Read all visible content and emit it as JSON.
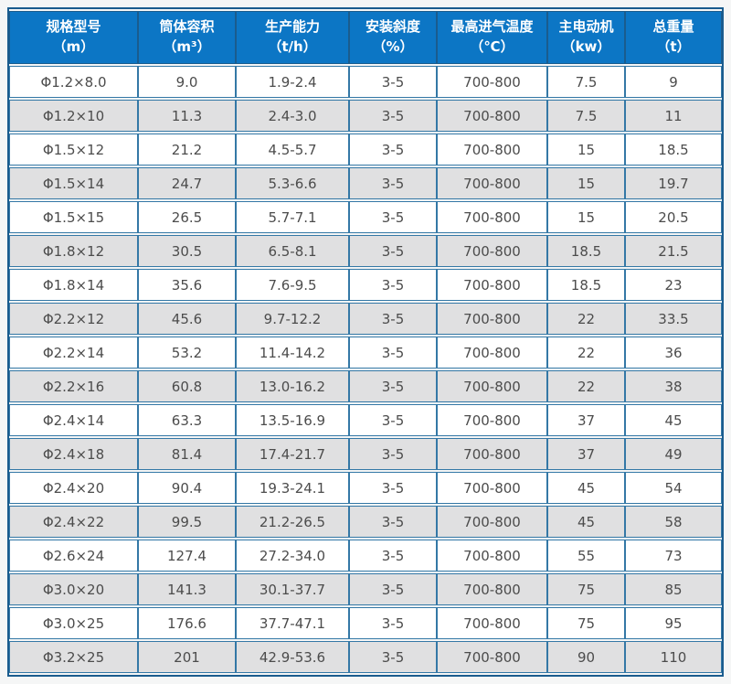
{
  "colors": {
    "header_bg": "#0c76c5",
    "header_text": "#ffffff",
    "outer_border": "#1a5c8e",
    "cell_border": "#3478a6",
    "row_bg": "#ffffff",
    "row_alt_bg": "#e0e0e1",
    "cell_text": "#4c4c4c",
    "page_bg": "#f5f6f6"
  },
  "chart_data": {
    "type": "table",
    "title": "",
    "columns": [
      {
        "label": "规格型号",
        "unit": "（m）"
      },
      {
        "label": "筒体容积",
        "unit": "（m³）"
      },
      {
        "label": "生产能力",
        "unit": "（t/h）"
      },
      {
        "label": "安装斜度",
        "unit": "（%）"
      },
      {
        "label": "最高进气温度",
        "unit": "（℃）"
      },
      {
        "label": "主电动机",
        "unit": "（kw）"
      },
      {
        "label": "总重量",
        "unit": "（t）"
      }
    ],
    "rows": [
      [
        "Φ1.2×8.0",
        "9.0",
        "1.9-2.4",
        "3-5",
        "700-800",
        "7.5",
        "9"
      ],
      [
        "Φ1.2×10",
        "11.3",
        "2.4-3.0",
        "3-5",
        "700-800",
        "7.5",
        "11"
      ],
      [
        "Φ1.5×12",
        "21.2",
        "4.5-5.7",
        "3-5",
        "700-800",
        "15",
        "18.5"
      ],
      [
        "Φ1.5×14",
        "24.7",
        "5.3-6.6",
        "3-5",
        "700-800",
        "15",
        "19.7"
      ],
      [
        "Φ1.5×15",
        "26.5",
        "5.7-7.1",
        "3-5",
        "700-800",
        "15",
        "20.5"
      ],
      [
        "Φ1.8×12",
        "30.5",
        "6.5-8.1",
        "3-5",
        "700-800",
        "18.5",
        "21.5"
      ],
      [
        "Φ1.8×14",
        "35.6",
        "7.6-9.5",
        "3-5",
        "700-800",
        "18.5",
        "23"
      ],
      [
        "Φ2.2×12",
        "45.6",
        "9.7-12.2",
        "3-5",
        "700-800",
        "22",
        "33.5"
      ],
      [
        "Φ2.2×14",
        "53.2",
        "11.4-14.2",
        "3-5",
        "700-800",
        "22",
        "36"
      ],
      [
        "Φ2.2×16",
        "60.8",
        "13.0-16.2",
        "3-5",
        "700-800",
        "22",
        "38"
      ],
      [
        "Φ2.4×14",
        "63.3",
        "13.5-16.9",
        "3-5",
        "700-800",
        "37",
        "45"
      ],
      [
        "Φ2.4×18",
        "81.4",
        "17.4-21.7",
        "3-5",
        "700-800",
        "37",
        "49"
      ],
      [
        "Φ2.4×20",
        "90.4",
        "19.3-24.1",
        "3-5",
        "700-800",
        "45",
        "54"
      ],
      [
        "Φ2.4×22",
        "99.5",
        "21.2-26.5",
        "3-5",
        "700-800",
        "45",
        "58"
      ],
      [
        "Φ2.6×24",
        "127.4",
        "27.2-34.0",
        "3-5",
        "700-800",
        "55",
        "73"
      ],
      [
        "Φ3.0×20",
        "141.3",
        "30.1-37.7",
        "3-5",
        "700-800",
        "75",
        "85"
      ],
      [
        "Φ3.0×25",
        "176.6",
        "37.7-47.1",
        "3-5",
        "700-800",
        "75",
        "95"
      ],
      [
        "Φ3.2×25",
        "201",
        "42.9-53.6",
        "3-5",
        "700-800",
        "90",
        "110"
      ]
    ]
  }
}
